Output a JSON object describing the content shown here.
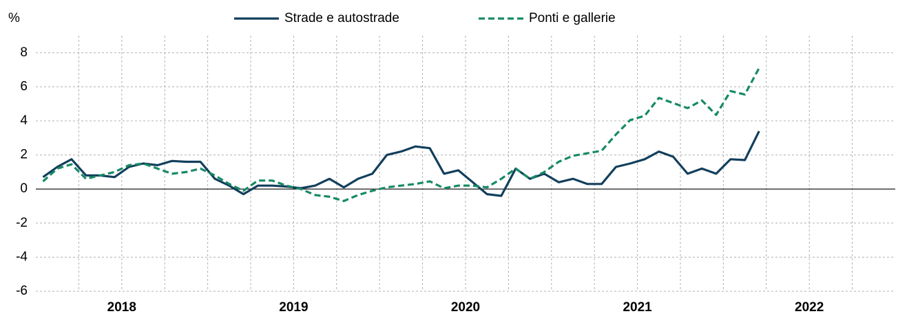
{
  "chart_data": {
    "type": "line",
    "y_unit_label": "%",
    "x": [
      2018.042,
      2018.125,
      2018.208,
      2018.292,
      2018.375,
      2018.458,
      2018.542,
      2018.625,
      2018.708,
      2018.792,
      2018.875,
      2018.958,
      2019.042,
      2019.125,
      2019.208,
      2019.292,
      2019.375,
      2019.458,
      2019.542,
      2019.625,
      2019.708,
      2019.792,
      2019.875,
      2019.958,
      2020.042,
      2020.125,
      2020.208,
      2020.292,
      2020.375,
      2020.458,
      2020.542,
      2020.625,
      2020.708,
      2020.792,
      2020.875,
      2020.958,
      2021.042,
      2021.125,
      2021.208,
      2021.292,
      2021.375,
      2021.458,
      2021.542,
      2021.625,
      2021.708,
      2021.792,
      2021.875,
      2021.958,
      2022.042,
      2022.125,
      2022.208
    ],
    "series": [
      {
        "name": "Strade e autostrade",
        "color": "#123f5c",
        "dash": false,
        "values": [
          0.7,
          1.3,
          1.75,
          0.8,
          0.8,
          0.7,
          1.3,
          1.5,
          1.4,
          1.65,
          1.6,
          1.6,
          0.6,
          0.2,
          -0.3,
          0.2,
          0.2,
          0.15,
          0.05,
          0.2,
          0.6,
          0.1,
          0.6,
          0.9,
          2.0,
          2.2,
          2.5,
          2.4,
          0.9,
          1.1,
          0.4,
          -0.3,
          -0.4,
          1.2,
          0.6,
          0.9,
          0.4,
          0.6,
          0.3,
          0.3,
          1.3,
          1.5,
          1.75,
          2.2,
          1.9,
          0.9,
          1.2,
          0.9,
          1.75,
          1.7,
          3.4
        ]
      },
      {
        "name": "Ponti e gallerie",
        "color": "#168a64",
        "dash": true,
        "values": [
          0.45,
          1.2,
          1.45,
          0.6,
          0.8,
          1.0,
          1.4,
          1.5,
          1.2,
          0.9,
          1.0,
          1.2,
          0.8,
          0.3,
          -0.1,
          0.5,
          0.5,
          0.2,
          0.0,
          -0.35,
          -0.45,
          -0.7,
          -0.35,
          -0.1,
          0.1,
          0.2,
          0.3,
          0.45,
          0.05,
          0.2,
          0.2,
          0.1,
          0.6,
          1.2,
          0.6,
          1.0,
          1.6,
          1.95,
          2.1,
          2.25,
          3.2,
          4.05,
          4.3,
          5.35,
          5.05,
          4.75,
          5.2,
          4.35,
          5.75,
          5.55,
          7.1
        ]
      }
    ],
    "xlim": [
      2018,
      2023
    ],
    "xticks": [
      {
        "value": 2018.5,
        "label": "2018"
      },
      {
        "value": 2019.5,
        "label": "2019"
      },
      {
        "value": 2020.5,
        "label": "2020"
      },
      {
        "value": 2021.5,
        "label": "2021"
      },
      {
        "value": 2022.5,
        "label": "2022"
      }
    ],
    "ylim": [
      -6,
      9
    ],
    "yticks": [
      -6,
      -4,
      -2,
      0,
      2,
      4,
      6,
      8
    ],
    "grid": true,
    "legend": "top"
  }
}
